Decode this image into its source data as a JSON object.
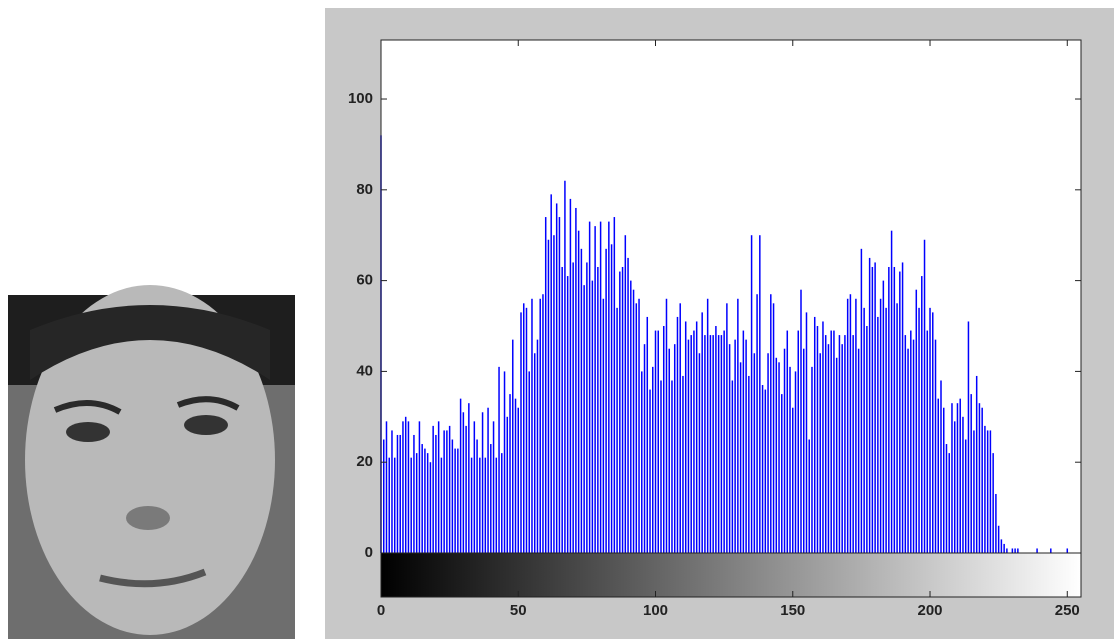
{
  "chart_data": {
    "type": "bar",
    "color": "#0000ff",
    "x": [
      0,
      1,
      2,
      3,
      4,
      5,
      6,
      7,
      8,
      9,
      10,
      11,
      12,
      13,
      14,
      15,
      16,
      17,
      18,
      19,
      20,
      21,
      22,
      23,
      24,
      25,
      26,
      27,
      28,
      29,
      30,
      31,
      32,
      33,
      34,
      35,
      36,
      37,
      38,
      39,
      40,
      41,
      42,
      43,
      44,
      45,
      46,
      47,
      48,
      49,
      50,
      51,
      52,
      53,
      54,
      55,
      56,
      57,
      58,
      59,
      60,
      61,
      62,
      63,
      64,
      65,
      66,
      67,
      68,
      69,
      70,
      71,
      72,
      73,
      74,
      75,
      76,
      77,
      78,
      79,
      80,
      81,
      82,
      83,
      84,
      85,
      86,
      87,
      88,
      89,
      90,
      91,
      92,
      93,
      94,
      95,
      96,
      97,
      98,
      99,
      100,
      101,
      102,
      103,
      104,
      105,
      106,
      107,
      108,
      109,
      110,
      111,
      112,
      113,
      114,
      115,
      116,
      117,
      118,
      119,
      120,
      121,
      122,
      123,
      124,
      125,
      126,
      127,
      128,
      129,
      130,
      131,
      132,
      133,
      134,
      135,
      136,
      137,
      138,
      139,
      140,
      141,
      142,
      143,
      144,
      145,
      146,
      147,
      148,
      149,
      150,
      151,
      152,
      153,
      154,
      155,
      156,
      157,
      158,
      159,
      160,
      161,
      162,
      163,
      164,
      165,
      166,
      167,
      168,
      169,
      170,
      171,
      172,
      173,
      174,
      175,
      176,
      177,
      178,
      179,
      180,
      181,
      182,
      183,
      184,
      185,
      186,
      187,
      188,
      189,
      190,
      191,
      192,
      193,
      194,
      195,
      196,
      197,
      198,
      199,
      200,
      201,
      202,
      203,
      204,
      205,
      206,
      207,
      208,
      209,
      210,
      211,
      212,
      213,
      214,
      215,
      216,
      217,
      218,
      219,
      220,
      221,
      222,
      223,
      224,
      225,
      226,
      227,
      228,
      229,
      230,
      231,
      232,
      233,
      234,
      235,
      236,
      237,
      238,
      239,
      240,
      241,
      242,
      243,
      244,
      245,
      246,
      247,
      248,
      249,
      250,
      251,
      252,
      253,
      254,
      255
    ],
    "values": [
      92,
      25,
      29,
      21,
      27,
      21,
      26,
      26,
      29,
      30,
      29,
      21,
      26,
      22,
      29,
      24,
      23,
      22,
      20,
      28,
      26,
      29,
      21,
      27,
      27,
      28,
      25,
      23,
      23,
      34,
      31,
      28,
      33,
      21,
      29,
      25,
      21,
      31,
      21,
      32,
      24,
      29,
      21,
      41,
      22,
      40,
      30,
      35,
      47,
      34,
      32,
      53,
      55,
      54,
      40,
      56,
      44,
      47,
      56,
      57,
      74,
      69,
      79,
      70,
      77,
      74,
      63,
      82,
      61,
      78,
      64,
      76,
      71,
      67,
      59,
      64,
      73,
      60,
      72,
      63,
      73,
      56,
      67,
      73,
      68,
      74,
      54,
      62,
      63,
      70,
      65,
      60,
      58,
      55,
      56,
      40,
      46,
      52,
      36,
      41,
      49,
      49,
      38,
      50,
      56,
      45,
      38,
      46,
      52,
      55,
      39,
      51,
      47,
      48,
      49,
      51,
      44,
      53,
      48,
      56,
      48,
      48,
      50,
      48,
      48,
      49,
      55,
      46,
      38,
      47,
      56,
      42,
      49,
      47,
      39,
      70,
      44,
      57,
      70,
      37,
      36,
      44,
      57,
      55,
      43,
      42,
      35,
      45,
      49,
      41,
      32,
      40,
      49,
      58,
      45,
      53,
      25,
      41,
      52,
      50,
      44,
      51,
      48,
      46,
      49,
      49,
      43,
      48,
      46,
      48,
      56,
      57,
      48,
      56,
      45,
      67,
      54,
      50,
      65,
      63,
      64,
      52,
      56,
      60,
      54,
      63,
      71,
      63,
      55,
      62,
      64,
      48,
      45,
      49,
      47,
      58,
      54,
      61,
      69,
      49,
      54,
      53,
      47,
      34,
      38,
      32,
      24,
      22,
      33,
      29,
      33,
      34,
      30,
      25,
      51,
      35,
      27,
      39,
      33,
      32,
      28,
      27,
      27,
      22,
      13,
      6,
      3,
      2,
      1,
      0,
      1,
      1,
      1,
      0,
      0,
      0,
      0,
      0,
      0,
      1,
      0,
      0,
      0,
      0,
      1,
      0,
      0,
      0,
      0,
      0,
      1,
      0,
      0,
      0,
      0,
      0
    ],
    "xlim": [
      0,
      255
    ],
    "ylim": [
      0,
      113
    ],
    "xticks": [
      0,
      50,
      100,
      150,
      200,
      250
    ],
    "yticks": [
      0,
      20,
      40,
      60,
      80,
      100
    ]
  }
}
